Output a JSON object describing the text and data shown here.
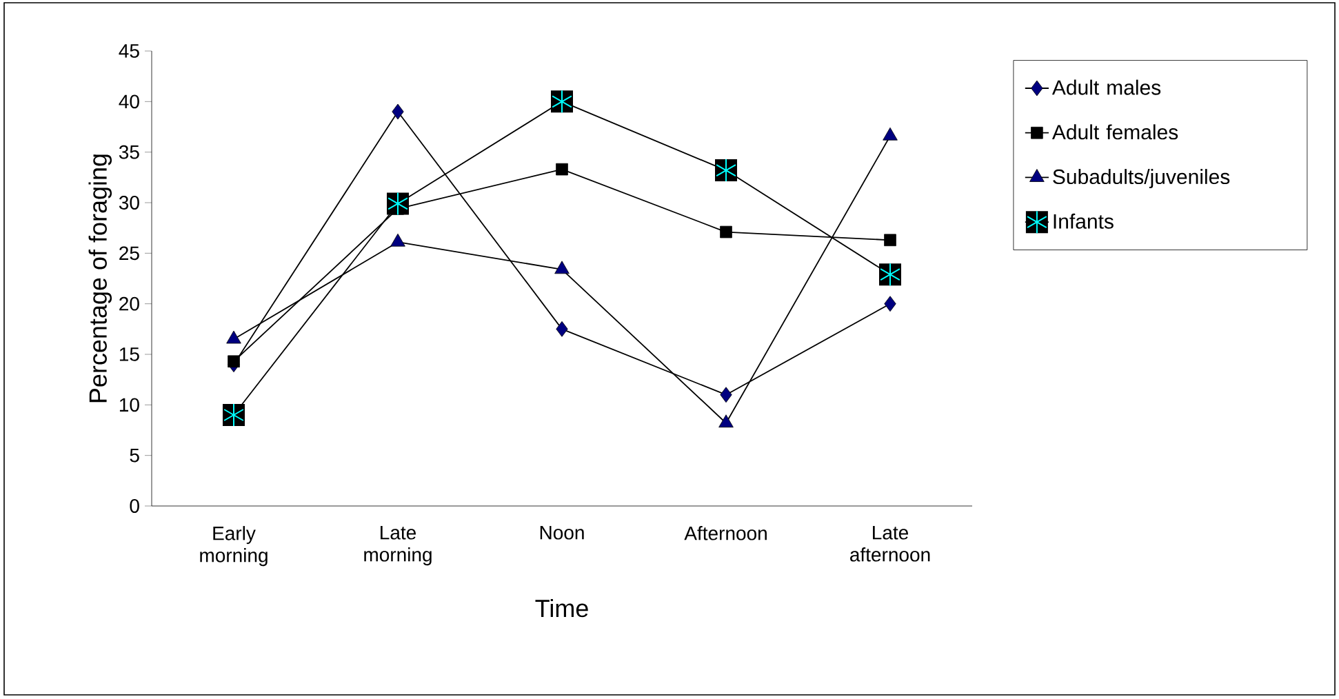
{
  "chart_data": {
    "type": "line",
    "xlabel": "Time",
    "ylabel": "Percentage of  foraging",
    "categories": [
      "Early morning",
      "Late morning",
      "Noon",
      "Afternoon",
      "Late afternoon"
    ],
    "ylim": [
      0,
      45
    ],
    "yticks": [
      0,
      5,
      10,
      15,
      20,
      25,
      30,
      35,
      40,
      45
    ],
    "grid": false,
    "legend": "right",
    "line_style": "solid",
    "series": [
      {
        "name": "Adult males",
        "color": "#000080",
        "marker": "diamond",
        "values": [
          14.0,
          39.0,
          17.5,
          11.0,
          20.0
        ]
      },
      {
        "name": "Adult females",
        "color": "#000000",
        "marker": "square",
        "values": [
          14.3,
          29.4,
          33.3,
          27.1,
          26.3
        ]
      },
      {
        "name": "Subadults/juveniles",
        "color": "#000080",
        "marker": "triangle",
        "values": [
          16.5,
          26.1,
          23.4,
          8.2,
          36.6
        ]
      },
      {
        "name": "Infants",
        "color": "#00ffff",
        "marker": "cross",
        "values": [
          9.0,
          29.9,
          40.0,
          33.2,
          22.9
        ]
      }
    ]
  }
}
